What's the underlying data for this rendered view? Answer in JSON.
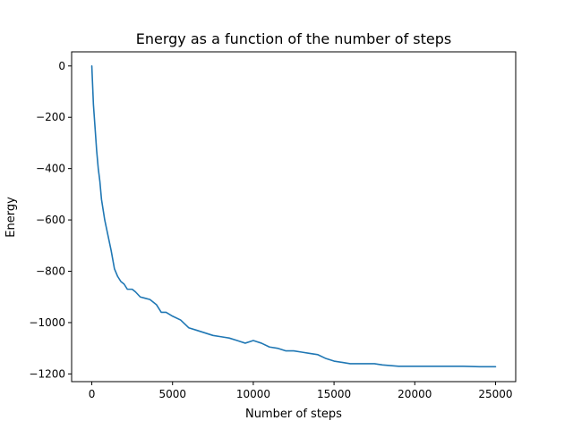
{
  "chart_data": {
    "type": "line",
    "title": "Energy as a function of the number of steps",
    "xlabel": "Number of steps",
    "ylabel": "Energy",
    "xlim": [
      -1250,
      26250
    ],
    "ylim": [
      -1230,
      55
    ],
    "xticks": [
      0,
      5000,
      10000,
      15000,
      20000,
      25000
    ],
    "xtick_labels": [
      "0",
      "5000",
      "10000",
      "15000",
      "20000",
      "25000"
    ],
    "yticks": [
      0,
      -200,
      -400,
      -600,
      -800,
      -1000,
      -1200
    ],
    "ytick_labels": [
      "0",
      "−200",
      "−400",
      "−600",
      "−800",
      "−1000",
      "−1200"
    ],
    "grid": false,
    "legend": "none",
    "series": [
      {
        "color": "#1f77b4",
        "x": [
          0,
          100,
          200,
          300,
          400,
          500,
          600,
          700,
          800,
          1000,
          1200,
          1400,
          1600,
          1800,
          2000,
          2200,
          2500,
          2700,
          3000,
          3300,
          3600,
          4000,
          4300,
          4600,
          5000,
          5500,
          6000,
          6500,
          7000,
          7500,
          8000,
          8500,
          9000,
          9500,
          10000,
          10500,
          11000,
          11500,
          12000,
          12500,
          13000,
          13500,
          14000,
          14500,
          15000,
          15500,
          16000,
          17000,
          17500,
          18000,
          19000,
          20000,
          21000,
          22000,
          23000,
          24000,
          25000
        ],
        "y": [
          0,
          -150,
          -240,
          -330,
          -400,
          -450,
          -520,
          -560,
          -600,
          -660,
          -720,
          -790,
          -820,
          -840,
          -850,
          -870,
          -870,
          -880,
          -900,
          -905,
          -910,
          -930,
          -960,
          -960,
          -975,
          -990,
          -1020,
          -1030,
          -1040,
          -1050,
          -1055,
          -1060,
          -1070,
          -1080,
          -1070,
          -1080,
          -1095,
          -1100,
          -1110,
          -1110,
          -1115,
          -1120,
          -1125,
          -1140,
          -1150,
          -1155,
          -1160,
          -1160,
          -1160,
          -1165,
          -1170,
          -1170,
          -1170,
          -1170,
          -1170,
          -1172,
          -1172
        ]
      }
    ]
  }
}
